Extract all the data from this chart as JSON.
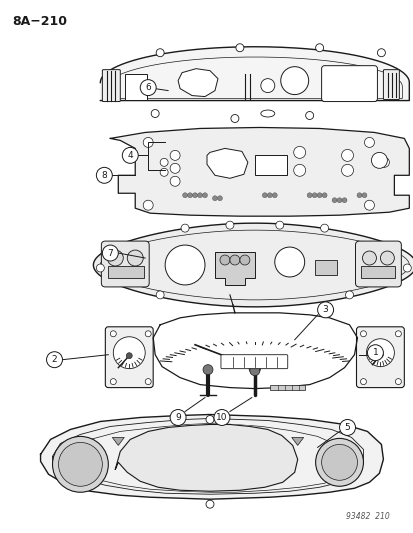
{
  "title": "8A−210",
  "watermark": "93482  210",
  "bg_color": "#ffffff",
  "line_color": "#1a1a1a",
  "fig_width": 4.14,
  "fig_height": 5.33,
  "dpi": 100
}
